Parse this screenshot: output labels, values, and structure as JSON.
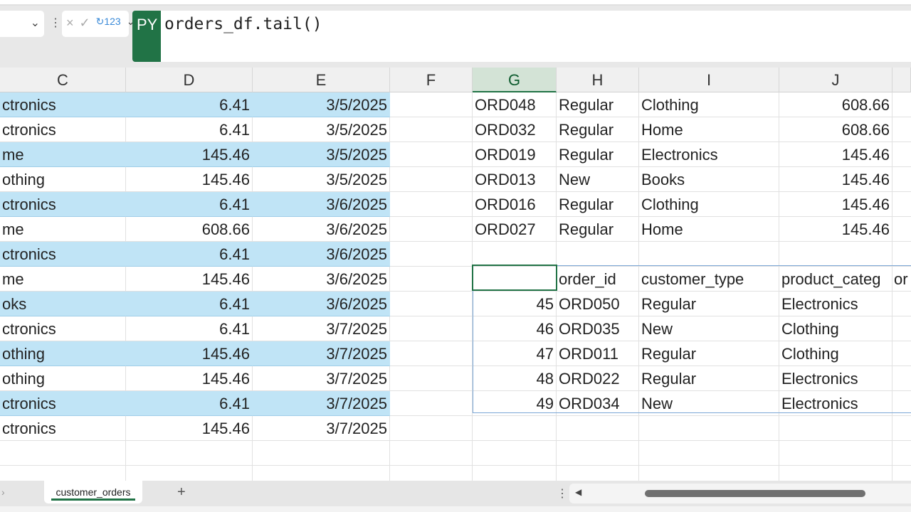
{
  "formula_bar": {
    "py_badge": "PY",
    "formula": "orders_df.tail()",
    "cancel_icon": "×",
    "confirm_icon": "✓",
    "output_type_icon": "↻123"
  },
  "columns": [
    "C",
    "D",
    "E",
    "F",
    "G",
    "H",
    "I",
    "J"
  ],
  "selected_column": "G",
  "left_table": [
    [
      "ctronics",
      "6.41",
      "3/5/2025"
    ],
    [
      "ctronics",
      "6.41",
      "3/5/2025"
    ],
    [
      "me",
      "145.46",
      "3/5/2025"
    ],
    [
      "othing",
      "145.46",
      "3/5/2025"
    ],
    [
      "ctronics",
      "6.41",
      "3/6/2025"
    ],
    [
      "me",
      "608.66",
      "3/6/2025"
    ],
    [
      "ctronics",
      "6.41",
      "3/6/2025"
    ],
    [
      "me",
      "145.46",
      "3/6/2025"
    ],
    [
      "oks",
      "6.41",
      "3/6/2025"
    ],
    [
      "ctronics",
      "6.41",
      "3/7/2025"
    ],
    [
      "othing",
      "145.46",
      "3/7/2025"
    ],
    [
      "othing",
      "145.46",
      "3/7/2025"
    ],
    [
      "ctronics",
      "6.41",
      "3/7/2025"
    ],
    [
      "ctronics",
      "145.46",
      "3/7/2025"
    ]
  ],
  "right_top": [
    [
      "ORD048",
      "Regular",
      "Clothing",
      "608.66"
    ],
    [
      "ORD032",
      "Regular",
      "Home",
      "608.66"
    ],
    [
      "ORD019",
      "Regular",
      "Electronics",
      "145.46"
    ],
    [
      "ORD013",
      "New",
      "Books",
      "145.46"
    ],
    [
      "ORD016",
      "Regular",
      "Clothing",
      "145.46"
    ],
    [
      "ORD027",
      "Regular",
      "Home",
      "145.46"
    ]
  ],
  "python_output": {
    "headers": [
      "",
      "order_id",
      "customer_type",
      "product_categ",
      "or"
    ],
    "rows": [
      [
        "45",
        "ORD050",
        "Regular",
        "Electronics"
      ],
      [
        "46",
        "ORD035",
        "New",
        "Clothing"
      ],
      [
        "47",
        "ORD011",
        "Regular",
        "Clothing"
      ],
      [
        "48",
        "ORD022",
        "Regular",
        "Electronics"
      ],
      [
        "49",
        "ORD034",
        "New",
        "Electronics"
      ]
    ]
  },
  "sheet_tabs": {
    "active": "customer_orders",
    "add_label": "+"
  },
  "colors": {
    "accent": "#217346",
    "band": "#c0e4f6"
  }
}
